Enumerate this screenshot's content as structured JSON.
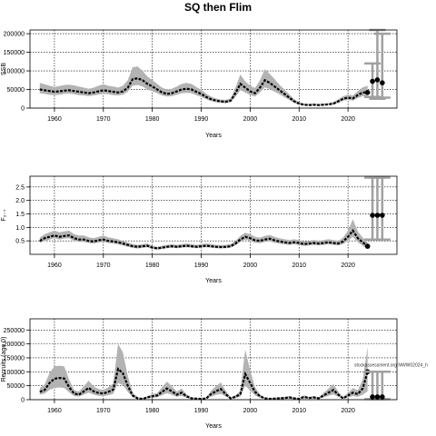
{
  "title": "SQ then Flim",
  "chart_data": [
    {
      "type": "line",
      "xlabel": "Years",
      "ylabel": "SSB",
      "xlim": [
        1955,
        2030
      ],
      "ylim": [
        0,
        210000
      ],
      "x_ticks": [
        1960,
        1970,
        1980,
        1990,
        2000,
        2010,
        2020
      ],
      "y_ticks": [
        0,
        50000,
        100000,
        150000,
        200000
      ],
      "grid": true,
      "years": [
        1957,
        1958,
        1959,
        1960,
        1961,
        1962,
        1963,
        1964,
        1965,
        1966,
        1967,
        1968,
        1969,
        1970,
        1971,
        1972,
        1973,
        1974,
        1975,
        1976,
        1977,
        1978,
        1979,
        1980,
        1981,
        1982,
        1983,
        1984,
        1985,
        1986,
        1987,
        1988,
        1989,
        1990,
        1991,
        1992,
        1993,
        1994,
        1995,
        1996,
        1997,
        1998,
        1999,
        2000,
        2001,
        2002,
        2003,
        2004,
        2005,
        2006,
        2007,
        2008,
        2009,
        2010,
        2011,
        2012,
        2013,
        2014,
        2015,
        2016,
        2017,
        2018,
        2019,
        2020,
        2021,
        2022,
        2023,
        2024
      ],
      "estimate": [
        50000,
        48000,
        46000,
        44000,
        45000,
        47000,
        48000,
        46000,
        44000,
        42000,
        40000,
        42000,
        45000,
        48000,
        46000,
        44000,
        42000,
        45000,
        55000,
        78000,
        80000,
        75000,
        65000,
        58000,
        50000,
        42000,
        38000,
        40000,
        45000,
        50000,
        52000,
        50000,
        44000,
        38000,
        30000,
        24000,
        20000,
        18000,
        17000,
        20000,
        40000,
        65000,
        55000,
        45000,
        40000,
        55000,
        75000,
        68000,
        58000,
        48000,
        38000,
        28000,
        18000,
        12000,
        9000,
        8000,
        9000,
        8000,
        9000,
        10000,
        12000,
        18000,
        25000,
        28000,
        26000,
        35000,
        42000,
        42000
      ],
      "lower": [
        40000,
        38000,
        36000,
        35000,
        36000,
        38000,
        39000,
        37000,
        35000,
        34000,
        32000,
        34000,
        36000,
        38000,
        37000,
        35000,
        34000,
        36000,
        44000,
        60000,
        62000,
        58000,
        50000,
        45000,
        40000,
        34000,
        31000,
        32000,
        36000,
        40000,
        41000,
        40000,
        35000,
        30000,
        24000,
        19000,
        16000,
        14000,
        13000,
        16000,
        30000,
        48000,
        42000,
        35000,
        31000,
        42000,
        56000,
        51000,
        44000,
        37000,
        29000,
        22000,
        14000,
        9000,
        7000,
        6000,
        7000,
        6000,
        7000,
        8000,
        9000,
        14000,
        20000,
        22000,
        20000,
        27000,
        32000,
        30000
      ],
      "upper": [
        68000,
        64000,
        60000,
        57000,
        59000,
        62000,
        63000,
        61000,
        58000,
        55000,
        52000,
        55000,
        60000,
        64000,
        60000,
        58000,
        55000,
        60000,
        75000,
        110000,
        112000,
        100000,
        85000,
        75000,
        65000,
        55000,
        50000,
        52000,
        58000,
        65000,
        68000,
        65000,
        57000,
        49000,
        39000,
        31000,
        26000,
        23000,
        22000,
        26000,
        55000,
        90000,
        72000,
        60000,
        54000,
        75000,
        105000,
        92000,
        78000,
        63000,
        50000,
        37000,
        24000,
        16000,
        12000,
        11000,
        12000,
        11000,
        12000,
        13000,
        16000,
        24000,
        32000,
        36000,
        34000,
        46000,
        56000,
        60000
      ],
      "projection": {
        "years": [
          2025,
          2026,
          2027
        ],
        "values": [
          72000,
          76000,
          68000
        ],
        "ci_lower": [
          30000,
          25000,
          28000
        ],
        "ci_upper": [
          120000,
          210000,
          200000
        ]
      }
    },
    {
      "type": "line",
      "xlabel": "Years",
      "ylabel": "F₂₋₇",
      "xlim": [
        1955,
        2030
      ],
      "ylim": [
        0,
        2.9
      ],
      "x_ticks": [
        1960,
        1970,
        1980,
        1990,
        2000,
        2010,
        2020
      ],
      "y_ticks": [
        0.5,
        1.0,
        1.5,
        2.0,
        2.5
      ],
      "grid": true,
      "years": [
        1957,
        1958,
        1959,
        1960,
        1961,
        1962,
        1963,
        1964,
        1965,
        1966,
        1967,
        1968,
        1969,
        1970,
        1971,
        1972,
        1973,
        1974,
        1975,
        1976,
        1977,
        1978,
        1979,
        1980,
        1981,
        1982,
        1983,
        1984,
        1985,
        1986,
        1987,
        1988,
        1989,
        1990,
        1991,
        1992,
        1993,
        1994,
        1995,
        1996,
        1997,
        1998,
        1999,
        2000,
        2001,
        2002,
        2003,
        2004,
        2005,
        2006,
        2007,
        2008,
        2009,
        2010,
        2011,
        2012,
        2013,
        2014,
        2015,
        2016,
        2017,
        2018,
        2019,
        2020,
        2021,
        2022,
        2023,
        2024
      ],
      "estimate": [
        0.5,
        0.6,
        0.65,
        0.7,
        0.65,
        0.68,
        0.7,
        0.6,
        0.55,
        0.55,
        0.5,
        0.48,
        0.52,
        0.55,
        0.5,
        0.48,
        0.45,
        0.4,
        0.35,
        0.3,
        0.28,
        0.3,
        0.32,
        0.25,
        0.22,
        0.25,
        0.28,
        0.3,
        0.28,
        0.3,
        0.32,
        0.3,
        0.28,
        0.3,
        0.32,
        0.3,
        0.28,
        0.27,
        0.28,
        0.3,
        0.4,
        0.55,
        0.65,
        0.6,
        0.52,
        0.5,
        0.55,
        0.58,
        0.52,
        0.48,
        0.45,
        0.42,
        0.45,
        0.42,
        0.38,
        0.4,
        0.42,
        0.4,
        0.42,
        0.45,
        0.42,
        0.4,
        0.48,
        0.65,
        0.88,
        0.6,
        0.45,
        0.3
      ],
      "lower": [
        0.42,
        0.5,
        0.55,
        0.6,
        0.55,
        0.58,
        0.6,
        0.5,
        0.46,
        0.46,
        0.42,
        0.4,
        0.44,
        0.46,
        0.42,
        0.4,
        0.37,
        0.33,
        0.28,
        0.24,
        0.22,
        0.24,
        0.26,
        0.2,
        0.18,
        0.2,
        0.23,
        0.25,
        0.23,
        0.25,
        0.26,
        0.25,
        0.23,
        0.25,
        0.26,
        0.25,
        0.23,
        0.22,
        0.23,
        0.25,
        0.33,
        0.46,
        0.55,
        0.5,
        0.43,
        0.41,
        0.46,
        0.48,
        0.43,
        0.4,
        0.37,
        0.35,
        0.37,
        0.35,
        0.31,
        0.33,
        0.35,
        0.33,
        0.35,
        0.37,
        0.35,
        0.33,
        0.38,
        0.5,
        0.65,
        0.45,
        0.32,
        0.2
      ],
      "upper": [
        0.62,
        0.75,
        0.82,
        0.88,
        0.82,
        0.85,
        0.88,
        0.75,
        0.7,
        0.7,
        0.63,
        0.6,
        0.65,
        0.7,
        0.63,
        0.6,
        0.56,
        0.5,
        0.44,
        0.38,
        0.35,
        0.38,
        0.4,
        0.32,
        0.28,
        0.32,
        0.35,
        0.38,
        0.35,
        0.38,
        0.4,
        0.38,
        0.35,
        0.38,
        0.4,
        0.38,
        0.35,
        0.34,
        0.35,
        0.38,
        0.5,
        0.68,
        0.8,
        0.75,
        0.65,
        0.62,
        0.68,
        0.72,
        0.65,
        0.6,
        0.56,
        0.53,
        0.56,
        0.53,
        0.48,
        0.5,
        0.53,
        0.5,
        0.53,
        0.56,
        0.53,
        0.5,
        0.62,
        0.88,
        1.3,
        0.85,
        0.62,
        0.45
      ],
      "projection": {
        "years": [
          2025,
          2026,
          2027
        ],
        "values": [
          1.45,
          1.45,
          1.45
        ],
        "ci_lower": [
          0.55,
          0.55,
          0.55
        ],
        "ci_upper": [
          2.85,
          2.85,
          2.85
        ]
      }
    },
    {
      "type": "line",
      "xlabel": "Years",
      "ylabel": "Recruits (age 0)",
      "xlim": [
        1955,
        2030
      ],
      "ylim": [
        0,
        290000
      ],
      "x_ticks": [
        1960,
        1970,
        1980,
        1990,
        2000,
        2010,
        2020
      ],
      "y_ticks": [
        0,
        50000,
        100000,
        150000,
        200000,
        250000
      ],
      "grid": true,
      "annotation": "stockassessment.org NWW02024_h",
      "years": [
        1957,
        1958,
        1959,
        1960,
        1961,
        1962,
        1963,
        1964,
        1965,
        1966,
        1967,
        1968,
        1969,
        1970,
        1971,
        1972,
        1973,
        1974,
        1975,
        1976,
        1977,
        1978,
        1979,
        1980,
        1981,
        1982,
        1983,
        1984,
        1985,
        1986,
        1987,
        1988,
        1989,
        1990,
        1991,
        1992,
        1993,
        1994,
        1995,
        1996,
        1997,
        1998,
        1999,
        2000,
        2001,
        2002,
        2003,
        2004,
        2005,
        2006,
        2007,
        2008,
        2009,
        2010,
        2011,
        2012,
        2013,
        2014,
        2015,
        2016,
        2017,
        2018,
        2019,
        2020,
        2021,
        2022,
        2023,
        2024
      ],
      "estimate": [
        28000,
        35000,
        60000,
        75000,
        78000,
        76000,
        45000,
        22000,
        18000,
        30000,
        42000,
        30000,
        24000,
        22000,
        28000,
        36000,
        110000,
        95000,
        50000,
        15000,
        5000,
        3000,
        8000,
        12000,
        15000,
        28000,
        40000,
        30000,
        18000,
        25000,
        12000,
        5000,
        4000,
        3000,
        4000,
        20000,
        30000,
        38000,
        20000,
        5000,
        10000,
        20000,
        92000,
        60000,
        28000,
        12000,
        5000,
        3000,
        4000,
        5000,
        6000,
        8000,
        5000,
        3000,
        10000,
        6000,
        8000,
        5000,
        15000,
        25000,
        35000,
        18000,
        5000,
        15000,
        25000,
        20000,
        40000,
        100000
      ],
      "lower": [
        18000,
        22000,
        35000,
        42000,
        44000,
        42000,
        26000,
        13000,
        11000,
        18000,
        25000,
        18000,
        14000,
        13000,
        16000,
        21000,
        60000,
        52000,
        28000,
        8000,
        3000,
        2000,
        5000,
        7000,
        9000,
        16000,
        23000,
        17000,
        10000,
        14000,
        7000,
        3000,
        2500,
        2000,
        2500,
        11000,
        17000,
        21000,
        11000,
        3000,
        6000,
        11000,
        50000,
        33000,
        15000,
        7000,
        3000,
        2000,
        2500,
        3000,
        3500,
        4500,
        3000,
        2000,
        6000,
        3500,
        4500,
        3000,
        8000,
        14000,
        19000,
        10000,
        3000,
        8000,
        13000,
        10000,
        18000,
        30000
      ],
      "upper": [
        42000,
        55000,
        95000,
        120000,
        122000,
        120000,
        72000,
        35000,
        29000,
        48000,
        68000,
        48000,
        38000,
        35000,
        45000,
        58000,
        200000,
        170000,
        85000,
        25000,
        8000,
        5000,
        13000,
        20000,
        24000,
        45000,
        65000,
        48000,
        29000,
        40000,
        19000,
        8000,
        6500,
        5000,
        6500,
        32000,
        48000,
        62000,
        32000,
        8000,
        16000,
        32000,
        180000,
        105000,
        45000,
        19000,
        8000,
        5000,
        6500,
        8000,
        9500,
        13000,
        8000,
        5000,
        16000,
        9500,
        13000,
        8000,
        24000,
        40000,
        56000,
        29000,
        8000,
        24000,
        42000,
        34000,
        72000,
        190000
      ],
      "projection": {
        "years": [
          2025,
          2026,
          2027
        ],
        "values": [
          10000,
          10000,
          10000
        ],
        "ci_lower": [
          2000,
          2000,
          2000
        ],
        "ci_upper": [
          100000,
          100000,
          100000
        ]
      }
    }
  ]
}
